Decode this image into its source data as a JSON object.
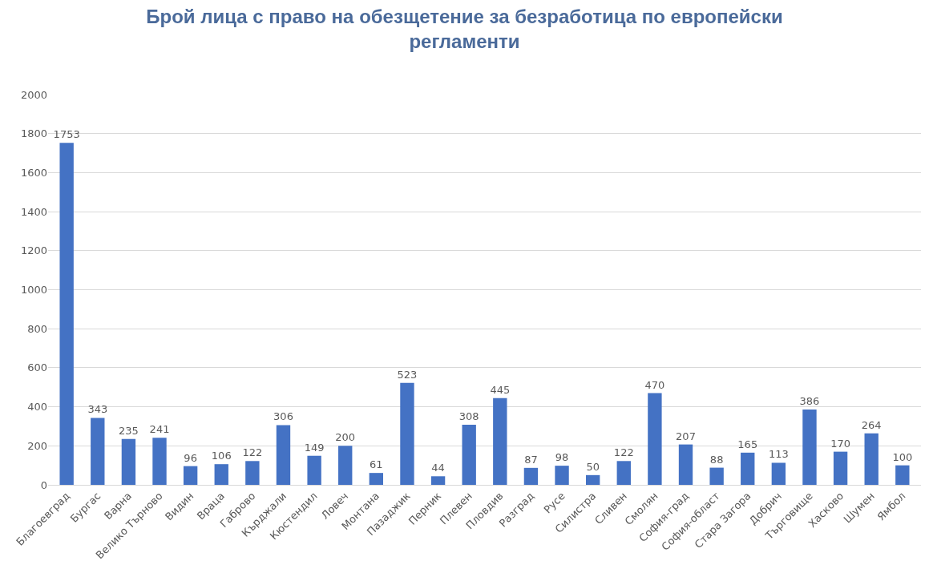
{
  "chart_data": {
    "type": "bar",
    "title": "Брой лица с право на обезщетение за безработица по европейски\nрегламенти",
    "categories": [
      "Благоевград",
      "Бургас",
      "Варна",
      "Велико Търново",
      "Видин",
      "Враца",
      "Габрово",
      "Кърджали",
      "Кюстендил",
      "Ловеч",
      "Монтана",
      "Пазаджик",
      "Перник",
      "Плевен",
      "Пловдив",
      "Разград",
      "Русе",
      "Силистра",
      "Сливен",
      "Смолян",
      "София-град",
      "София-област",
      "Стара Загора",
      "Добрич",
      "Търговище",
      "Хасково",
      "Шумен",
      "Ямбол"
    ],
    "values": [
      1753,
      343,
      235,
      241,
      96,
      106,
      122,
      306,
      149,
      200,
      61,
      523,
      44,
      308,
      445,
      87,
      98,
      50,
      122,
      470,
      207,
      88,
      165,
      113,
      386,
      170,
      264,
      100
    ],
    "color": "#4472c4",
    "ylim": [
      0,
      2000
    ],
    "yticks": [
      0,
      200,
      400,
      600,
      800,
      1000,
      1200,
      1400,
      1600,
      1800,
      2000
    ],
    "grid": "y",
    "data_labels": true,
    "legend": false
  }
}
